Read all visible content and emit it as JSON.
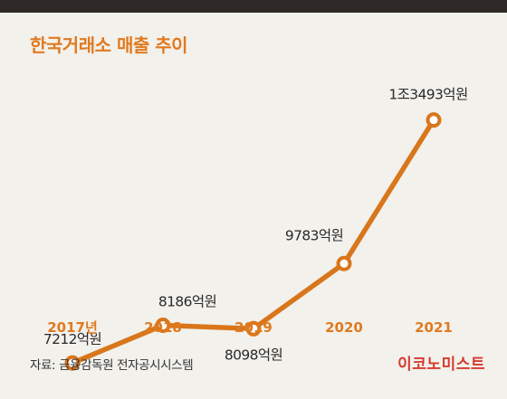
{
  "colors": {
    "accent": "#e07a1f",
    "line": "#d9761c",
    "brand": "#d63a2f",
    "background": "#f2f1ec",
    "top_bar": "#2f2a28"
  },
  "header": {
    "title": "한국거래소 매출 추이"
  },
  "chart_data": {
    "type": "line",
    "title": "한국거래소 매출 추이",
    "x": [
      "2017년",
      "2018",
      "2019",
      "2020",
      "2021"
    ],
    "values": [
      7212,
      8186,
      8098,
      9783,
      13493
    ],
    "value_labels": [
      "7212억원",
      "8186억원",
      "8098억원",
      "9783억원",
      "1조3493억원"
    ],
    "unit": "억원",
    "ylim": [
      6000,
      14000
    ],
    "grid": false,
    "legend": "none"
  },
  "footer": {
    "source": "자료: 금융감독원 전자공시시스템",
    "brand": "이코노미스트"
  }
}
